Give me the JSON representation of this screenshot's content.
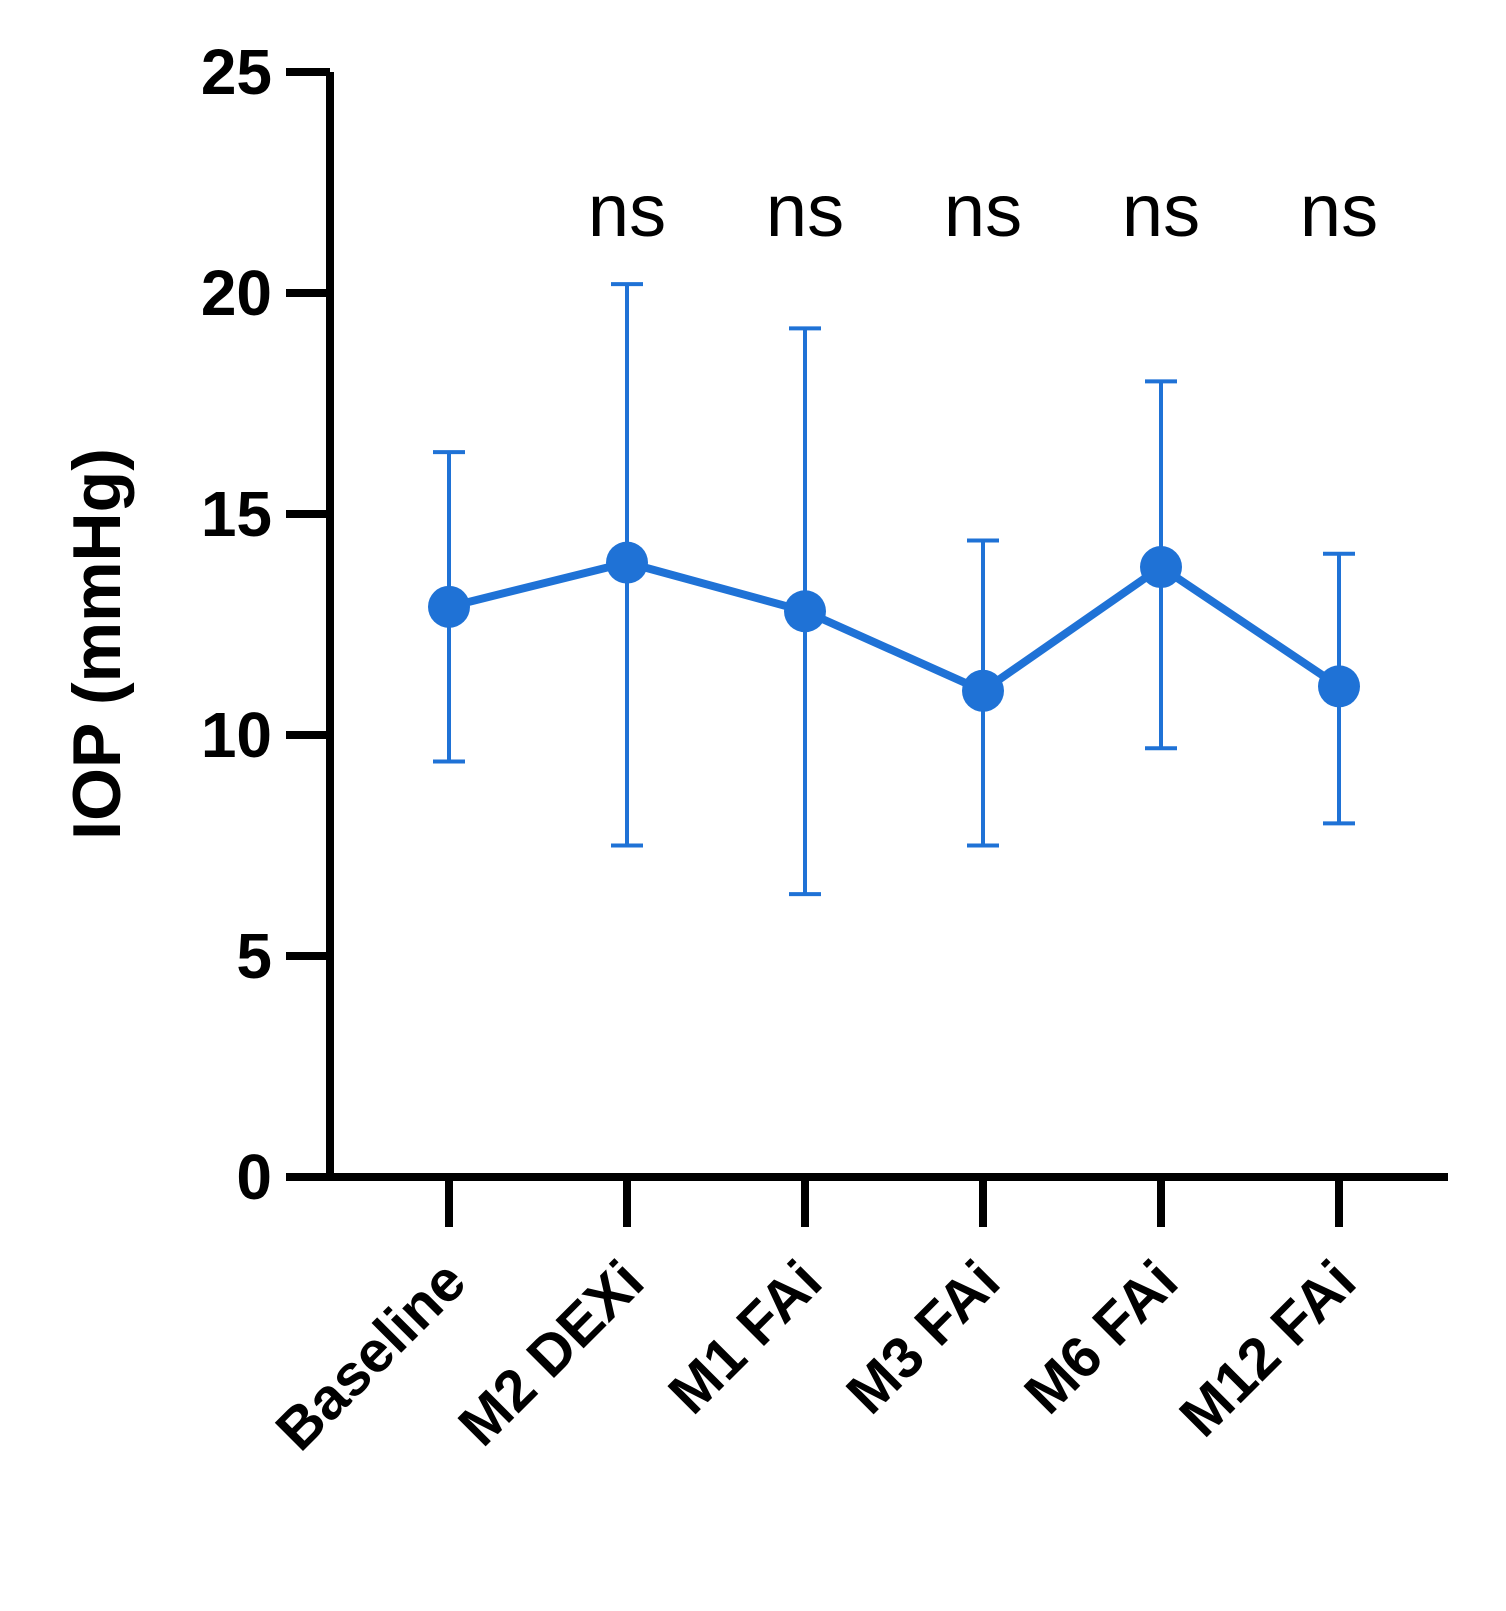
{
  "chart_data": {
    "type": "line",
    "title": "",
    "xlabel": "",
    "ylabel": "IOP (mmHg)",
    "ylim": [
      0,
      25
    ],
    "yticks": [
      "0",
      "5",
      "10",
      "15",
      "20",
      "25"
    ],
    "grid": false,
    "categories": [
      "Baseline",
      "M2 DEXi",
      "M1 FAi",
      "M3 FAi",
      "M6 FAi",
      "M12 FAi"
    ],
    "series": [
      {
        "name": "IOP",
        "color": "#1f72d6",
        "values": [
          12.9,
          13.9,
          12.8,
          11.0,
          13.8,
          11.1
        ],
        "error_low": [
          9.4,
          7.5,
          6.4,
          7.5,
          9.7,
          8.0
        ],
        "error_high": [
          16.4,
          20.2,
          19.2,
          14.4,
          18.0,
          14.1
        ]
      }
    ],
    "annotations": [
      "",
      "ns",
      "ns",
      "ns",
      "ns",
      "ns"
    ]
  }
}
